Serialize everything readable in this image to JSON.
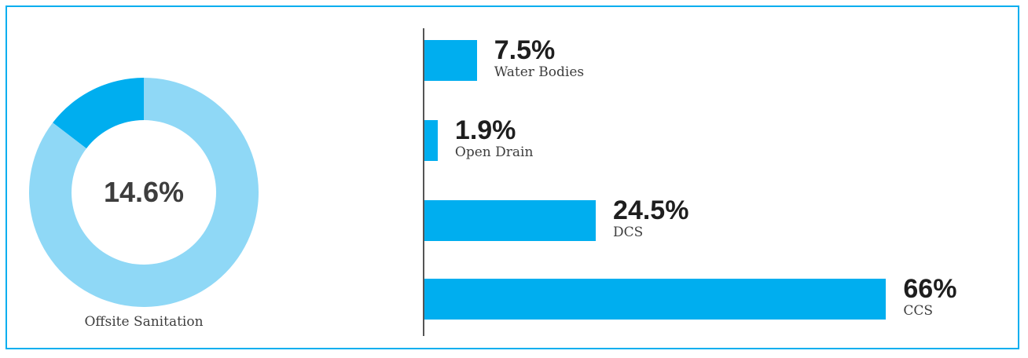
{
  "colors": {
    "accent": "#00aeef",
    "light_accent": "#8fd8f6",
    "text_dark": "#1e1e1e",
    "text_mid": "#3d3d3d"
  },
  "donut": {
    "center_label": "14.6%",
    "caption": "Offsite Sanitation"
  },
  "chart_data": [
    {
      "type": "pie",
      "variant": "donut",
      "title": "",
      "slices": [
        {
          "label": "Offsite Sanitation",
          "value": 14.6,
          "color": "#00aeef"
        },
        {
          "label": "",
          "value": 85.4,
          "color": "#8fd8f6"
        }
      ]
    },
    {
      "type": "bar",
      "orientation": "horizontal",
      "categories": [
        "Water Bodies",
        "Open Drain",
        "DCS",
        "CCS"
      ],
      "values": [
        7.5,
        1.9,
        24.5,
        66
      ],
      "value_labels": [
        "7.5%",
        "1.9%",
        "24.5%",
        "66%"
      ],
      "xlim": [
        0,
        100
      ],
      "grid": false,
      "color": "#00aeef"
    }
  ]
}
